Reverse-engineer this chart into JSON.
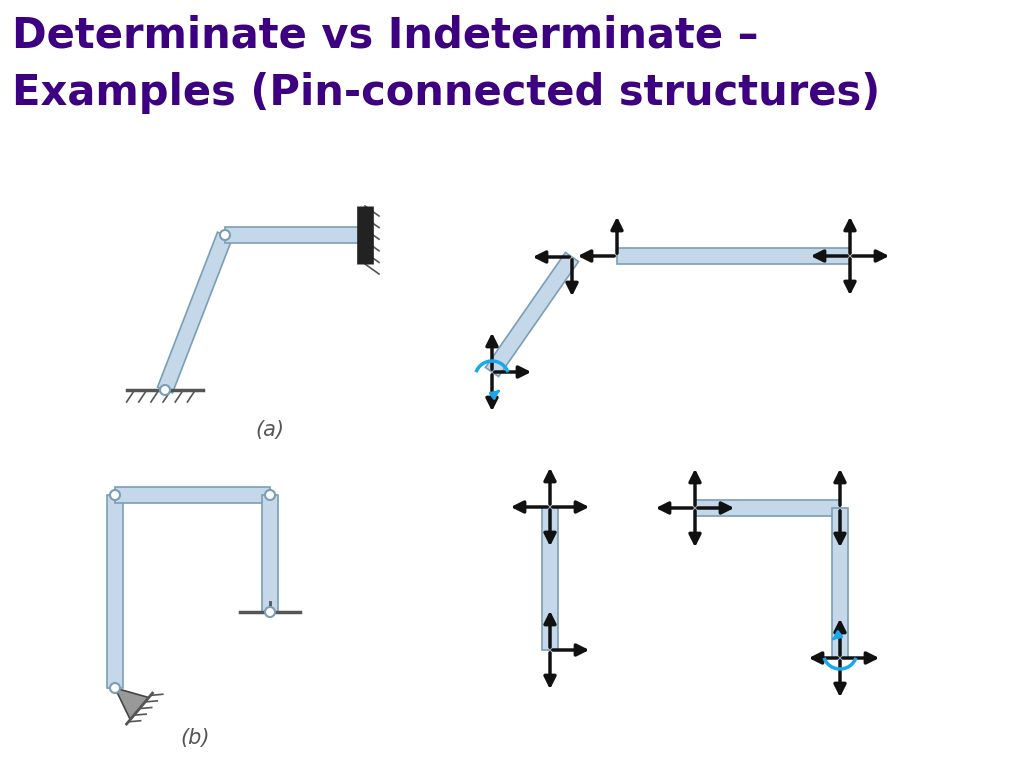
{
  "title_line1": "Determinate vs Indeterminate –",
  "title_line2": "Examples (Pin-connected structures)",
  "title_color": "#3d0080",
  "title_fontsize": 30,
  "title_fontweight": "bold",
  "bg_color": "#ffffff",
  "label_a": "(a)",
  "label_b": "(b)",
  "label_fontsize": 15,
  "member_color": "#c5d8ea",
  "member_edge_color": "#7a9eb5",
  "member_lw": 1.2,
  "arrow_color": "#111111",
  "arrow_lw": 2.5,
  "arrow_ms": 18,
  "cyan_color": "#1aa7ec",
  "support_color": "#999999",
  "support_edge": "#444444",
  "ground_color": "#555555",
  "ground_lw": 2.0,
  "hatch_lw": 1.2
}
